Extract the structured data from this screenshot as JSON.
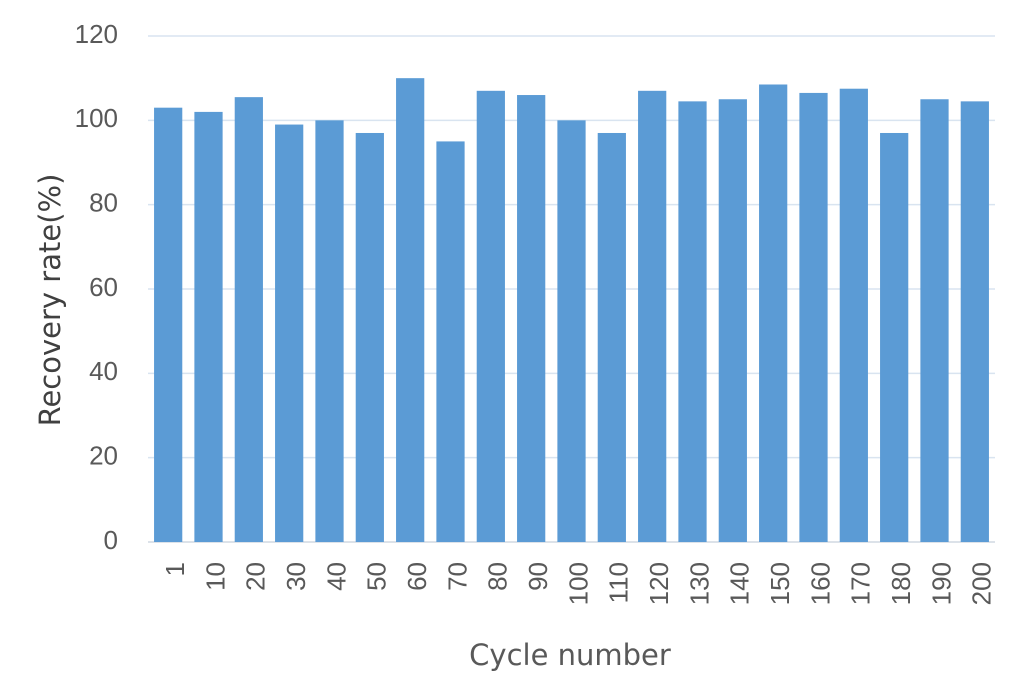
{
  "chart_data": {
    "type": "bar",
    "title": "",
    "xlabel": "Cycle number",
    "ylabel": "Recovery rate(%)",
    "ylim": [
      0,
      120
    ],
    "yticks": [
      0,
      20,
      40,
      60,
      80,
      100,
      120
    ],
    "grid": true,
    "legend": "none",
    "bar_color": "#5B9BD5",
    "grid_color": "#D9E4F0",
    "categories": [
      "1",
      "10",
      "20",
      "30",
      "40",
      "50",
      "60",
      "70",
      "80",
      "90",
      "100",
      "110",
      "120",
      "130",
      "140",
      "150",
      "160",
      "170",
      "180",
      "190",
      "200"
    ],
    "values": [
      103,
      102,
      105.5,
      99,
      100,
      97,
      110,
      95,
      107,
      106,
      100,
      97,
      107,
      104.5,
      105,
      108.5,
      106.5,
      107.5,
      97,
      105,
      104.5
    ]
  }
}
